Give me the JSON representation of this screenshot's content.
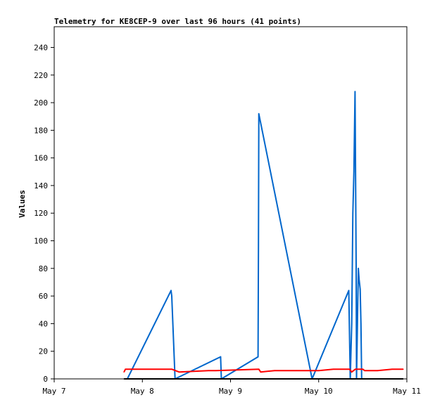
{
  "chart_data": {
    "type": "line",
    "title": "Telemetry for KE8CEP-9 over last 96 hours (41 points)",
    "xlabel": "",
    "ylabel": "Values",
    "x_tick_labels": [
      "May 7",
      "May 8",
      "May 9",
      "May 10",
      "May 11"
    ],
    "x_ticks_hours": [
      0,
      24,
      48,
      72,
      96
    ],
    "xlim_hours": [
      0,
      96
    ],
    "y_ticks": [
      0,
      20,
      40,
      60,
      80,
      100,
      120,
      140,
      160,
      180,
      200,
      220,
      240
    ],
    "ylim": [
      0,
      255
    ],
    "grid": false,
    "legend": "none",
    "series": [
      {
        "color": "#0066cc",
        "x_hours": [
          19.9,
          31.8,
          32.0,
          32.9,
          45.3,
          45.5,
          55.5,
          55.6,
          55.7,
          70.2,
          80.2,
          80.6,
          81.0,
          81.3,
          81.6,
          81.9,
          82.2,
          82.3,
          82.8,
          83.0,
          83.3,
          83.5,
          83.7,
          84.5
        ],
        "values": [
          0,
          64,
          60,
          0,
          16,
          0,
          16,
          97,
          192,
          0,
          64,
          0,
          40,
          120,
          150,
          208,
          80,
          0,
          80,
          72,
          65,
          40,
          0,
          0
        ]
      },
      {
        "color": "#ff0000",
        "x_hours": [
          19.0,
          19.4,
          20.2,
          28.0,
          32.0,
          34.0,
          42.0,
          44.0,
          55.7,
          56.2,
          60.0,
          66.0,
          72.0,
          76.0,
          80.4,
          81.0,
          82.0,
          84.0,
          84.5,
          88.0,
          92.0,
          95.0
        ],
        "values": [
          5,
          7,
          7,
          7,
          7,
          5,
          6,
          6,
          7,
          5,
          6,
          6,
          6,
          7,
          7,
          5,
          7,
          7,
          6,
          6,
          7,
          7
        ]
      },
      {
        "color": "#000000",
        "x_hours": [
          19.0,
          95.0
        ],
        "values": [
          0,
          0
        ]
      }
    ]
  }
}
